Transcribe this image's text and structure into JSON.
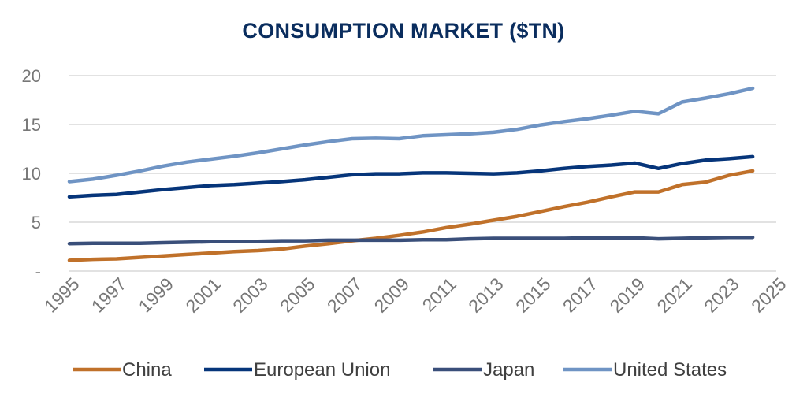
{
  "chart_data": {
    "type": "line",
    "title": "CONSUMPTION MARKET ($TN)",
    "xlabel": "",
    "ylabel": "",
    "x": [
      1995,
      1996,
      1997,
      1998,
      1999,
      2000,
      2001,
      2002,
      2003,
      2004,
      2005,
      2006,
      2007,
      2008,
      2009,
      2010,
      2011,
      2012,
      2013,
      2014,
      2015,
      2016,
      2017,
      2018,
      2019,
      2020,
      2021,
      2022,
      2023,
      2024
    ],
    "xlim": [
      1995,
      2025
    ],
    "x_ticks": [
      "1995",
      "1997",
      "1999",
      "2001",
      "2003",
      "2005",
      "2007",
      "2009",
      "2011",
      "2013",
      "2015",
      "2017",
      "2019",
      "2021",
      "2023",
      "2025"
    ],
    "ylim": [
      0,
      20
    ],
    "y_ticks": [
      "-",
      "5",
      "10",
      "15",
      "20"
    ],
    "grid": true,
    "legend_position": "bottom",
    "series": [
      {
        "name": "China",
        "color": "#c0712a",
        "values": [
          1.1,
          1.2,
          1.25,
          1.4,
          1.55,
          1.7,
          1.85,
          2.0,
          2.1,
          2.25,
          2.55,
          2.8,
          3.1,
          3.35,
          3.65,
          4.0,
          4.45,
          4.8,
          5.2,
          5.6,
          6.1,
          6.6,
          7.05,
          7.6,
          8.1,
          8.1,
          8.85,
          9.1,
          9.8,
          10.25
        ]
      },
      {
        "name": "European Union",
        "color": "#06357a",
        "values": [
          7.6,
          7.75,
          7.85,
          8.1,
          8.35,
          8.55,
          8.75,
          8.85,
          9.0,
          9.15,
          9.35,
          9.6,
          9.85,
          9.95,
          9.95,
          10.05,
          10.05,
          10.0,
          9.95,
          10.05,
          10.25,
          10.5,
          10.7,
          10.85,
          11.05,
          10.5,
          11.0,
          11.35,
          11.5,
          11.7
        ]
      },
      {
        "name": "Japan",
        "color": "#3a4f7a",
        "values": [
          2.8,
          2.85,
          2.85,
          2.85,
          2.9,
          2.95,
          3.0,
          3.0,
          3.05,
          3.1,
          3.1,
          3.15,
          3.15,
          3.15,
          3.15,
          3.2,
          3.2,
          3.3,
          3.35,
          3.35,
          3.35,
          3.35,
          3.4,
          3.4,
          3.4,
          3.3,
          3.35,
          3.4,
          3.45,
          3.45
        ]
      },
      {
        "name": "United States",
        "color": "#6f94c4",
        "values": [
          9.15,
          9.4,
          9.8,
          10.25,
          10.75,
          11.15,
          11.45,
          11.75,
          12.1,
          12.5,
          12.9,
          13.25,
          13.55,
          13.6,
          13.55,
          13.85,
          13.95,
          14.05,
          14.2,
          14.5,
          14.95,
          15.3,
          15.6,
          15.95,
          16.35,
          16.1,
          17.3,
          17.7,
          18.15,
          18.7
        ]
      }
    ]
  }
}
